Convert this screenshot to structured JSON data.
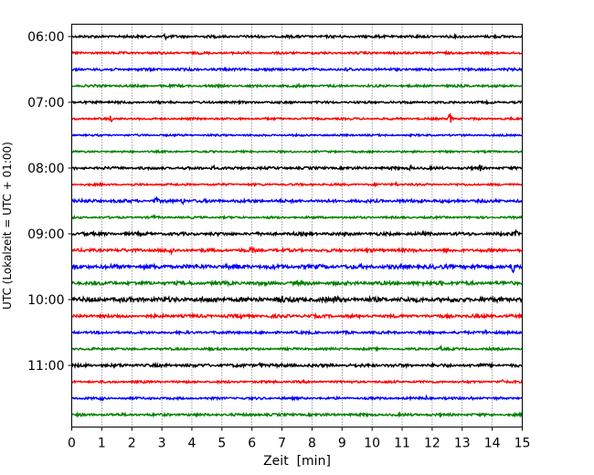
{
  "chart_data": {
    "type": "line",
    "title": "",
    "xlabel": "Zeit  [min]",
    "ylabel": "UTC (Lokalzeit = UTC + 01:00)",
    "xlim": [
      0,
      15
    ],
    "x_ticks": [
      0,
      1,
      2,
      3,
      4,
      5,
      6,
      7,
      8,
      9,
      10,
      11,
      12,
      13,
      14,
      15
    ],
    "y_tick_labels": [
      "06:00",
      "07:00",
      "08:00",
      "09:00",
      "10:00",
      "11:00"
    ],
    "grid": "vertical dotted lines at each minute",
    "legend": "none",
    "trace_interval_minutes": 15,
    "color_cycle": [
      "#000000",
      "#ff0000",
      "#0000ff",
      "#008000"
    ],
    "traces": [
      {
        "start": "06:00",
        "amplitude": 0.25,
        "events": [
          {
            "x": 3.1,
            "amp": 0.4
          }
        ]
      },
      {
        "start": "06:15",
        "amplitude": 0.22,
        "events": []
      },
      {
        "start": "06:30",
        "amplitude": 0.25,
        "events": [
          {
            "x": 9.2,
            "amp": 0.35
          }
        ]
      },
      {
        "start": "06:45",
        "amplitude": 0.22,
        "events": [
          {
            "x": 7.5,
            "amp": 0.3
          }
        ]
      },
      {
        "start": "07:00",
        "amplitude": 0.22,
        "events": [
          {
            "x": 0.9,
            "amp": 0.3
          }
        ]
      },
      {
        "start": "07:15",
        "amplitude": 0.2,
        "events": [
          {
            "x": 1.3,
            "amp": 0.5
          },
          {
            "x": 12.6,
            "amp": 1.2
          }
        ]
      },
      {
        "start": "07:30",
        "amplitude": 0.18,
        "events": []
      },
      {
        "start": "07:45",
        "amplitude": 0.18,
        "events": []
      },
      {
        "start": "08:00",
        "amplitude": 0.25,
        "events": [
          {
            "x": 4.7,
            "amp": 0.45
          },
          {
            "x": 11.3,
            "amp": 0.5
          },
          {
            "x": 13.6,
            "amp": 0.6
          }
        ]
      },
      {
        "start": "08:15",
        "amplitude": 0.2,
        "events": [
          {
            "x": 10.8,
            "amp": 0.35
          }
        ]
      },
      {
        "start": "08:30",
        "amplitude": 0.3,
        "events": [
          {
            "x": 2.8,
            "amp": 0.55
          },
          {
            "x": 3.7,
            "amp": 0.5
          },
          {
            "x": 11.6,
            "amp": 0.35
          }
        ]
      },
      {
        "start": "08:45",
        "amplitude": 0.2,
        "events": [
          {
            "x": 2.7,
            "amp": 0.3
          }
        ]
      },
      {
        "start": "09:00",
        "amplitude": 0.3,
        "events": [
          {
            "x": 0.4,
            "amp": 0.4
          },
          {
            "x": 14.8,
            "amp": 0.5
          }
        ]
      },
      {
        "start": "09:15",
        "amplitude": 0.3,
        "events": [
          {
            "x": 3.3,
            "amp": 0.8
          },
          {
            "x": 6.0,
            "amp": 0.5
          }
        ]
      },
      {
        "start": "09:30",
        "amplitude": 0.4,
        "events": [
          {
            "x": 14.7,
            "amp": 1.1
          }
        ]
      },
      {
        "start": "09:45",
        "amplitude": 0.35,
        "events": [
          {
            "x": 12.3,
            "amp": 0.45
          }
        ]
      },
      {
        "start": "10:00",
        "amplitude": 0.45,
        "events": [
          {
            "x": 7.0,
            "amp": 0.6
          },
          {
            "x": 8.8,
            "amp": 0.5
          }
        ]
      },
      {
        "start": "10:15",
        "amplitude": 0.3,
        "events": [
          {
            "x": 5.7,
            "amp": 0.6
          }
        ]
      },
      {
        "start": "10:30",
        "amplitude": 0.25,
        "events": [
          {
            "x": 13.8,
            "amp": 0.6
          }
        ]
      },
      {
        "start": "10:45",
        "amplitude": 0.22,
        "events": [
          {
            "x": 12.3,
            "amp": 0.35
          }
        ]
      },
      {
        "start": "11:00",
        "amplitude": 0.3,
        "events": [
          {
            "x": 6.3,
            "amp": 0.6
          }
        ]
      },
      {
        "start": "11:15",
        "amplitude": 0.22,
        "events": [
          {
            "x": 14.3,
            "amp": 0.3
          }
        ]
      },
      {
        "start": "11:30",
        "amplitude": 0.22,
        "events": [
          {
            "x": 1.0,
            "amp": 0.35
          },
          {
            "x": 2.6,
            "amp": 0.35
          },
          {
            "x": 11.8,
            "amp": 0.35
          },
          {
            "x": 13.3,
            "amp": 0.3
          }
        ]
      },
      {
        "start": "11:45",
        "amplitude": 0.25,
        "events": []
      }
    ]
  }
}
